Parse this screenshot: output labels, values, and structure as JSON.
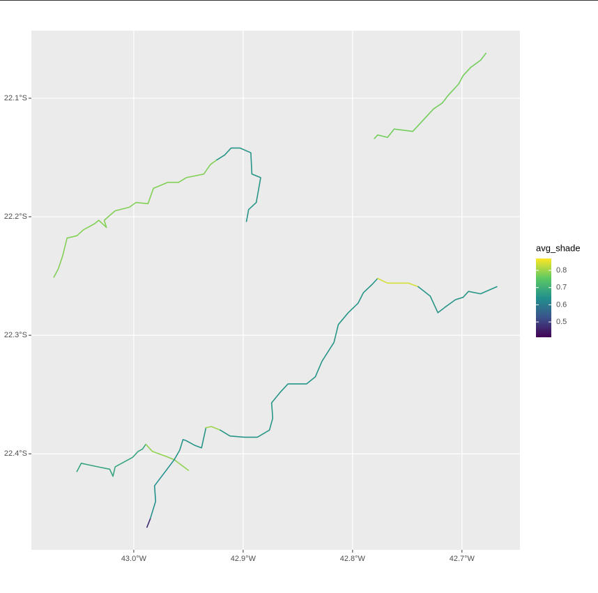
{
  "chart_data": {
    "type": "geo_lines",
    "xlim": [
      -43.0936,
      -42.647
    ],
    "ylim": [
      -22.481,
      -22.043
    ],
    "xticks": [
      {
        "value": -43.0,
        "label": "43.0°W"
      },
      {
        "value": -42.9,
        "label": "42.9°W"
      },
      {
        "value": -42.8,
        "label": "42.8°W"
      },
      {
        "value": -42.7,
        "label": "42.7°W"
      }
    ],
    "yticks": [
      {
        "value": -22.1,
        "label": "22.1°S"
      },
      {
        "value": -22.2,
        "label": "22.2°S"
      },
      {
        "value": -22.3,
        "label": "22.3°S"
      },
      {
        "value": -22.4,
        "label": "22.4°S"
      }
    ],
    "grid": true,
    "legend": {
      "title": "avg_shade",
      "limits": [
        0.411,
        0.869
      ],
      "ticks": [
        0.5,
        0.6,
        0.7,
        0.8
      ],
      "position": "right"
    },
    "series": [
      {
        "avg_shade": 0.77,
        "lon": [
          -42.78,
          -42.777,
          -42.768,
          -42.762,
          -42.745,
          -42.738,
          -42.726,
          -42.718,
          -42.713,
          -42.703,
          -42.699,
          -42.692,
          -42.683,
          -42.678
        ],
        "lat": [
          -22.134,
          -22.131,
          -22.133,
          -22.126,
          -22.128,
          -22.121,
          -22.109,
          -22.104,
          -22.098,
          -22.088,
          -22.081,
          -22.074,
          -22.068,
          -22.062
        ]
      },
      {
        "avg_shade": 0.78,
        "lon": [
          -43.073,
          -43.069,
          -43.065,
          -43.061,
          -43.052,
          -43.046,
          -43.036,
          -43.032,
          -43.025,
          -43.027,
          -43.017,
          -43.004,
          -42.998,
          -42.987,
          -42.982,
          -42.969,
          -42.959,
          -42.952,
          -42.936,
          -42.93,
          -42.924
        ],
        "lat": [
          -22.251,
          -22.244,
          -22.233,
          -22.218,
          -22.216,
          -22.211,
          -22.206,
          -22.203,
          -22.209,
          -22.203,
          -22.195,
          -22.192,
          -22.188,
          -22.189,
          -22.176,
          -22.171,
          -22.171,
          -22.167,
          -22.164,
          -22.156,
          -22.152
        ]
      },
      {
        "avg_shade": 0.65,
        "lon": [
          -42.924,
          -42.917,
          -42.911,
          -42.903,
          -42.893,
          -42.892,
          -42.884,
          -42.888,
          -42.895,
          -42.897
        ],
        "lat": [
          -22.152,
          -22.148,
          -22.142,
          -22.142,
          -22.146,
          -22.164,
          -22.167,
          -22.188,
          -22.194,
          -22.204
        ]
      },
      {
        "avg_shade": 0.68,
        "lon": [
          -43.052,
          -43.048,
          -43.033,
          -43.022,
          -43.019,
          -43.017,
          -43.001,
          -42.996,
          -42.992,
          -42.989
        ],
        "lat": [
          -22.415,
          -22.408,
          -22.411,
          -22.413,
          -22.419,
          -22.411,
          -22.403,
          -22.398,
          -22.396,
          -22.392
        ]
      },
      {
        "avg_shade": 0.79,
        "lon": [
          -42.989,
          -42.983,
          -42.977,
          -42.971,
          -42.963,
          -42.95
        ],
        "lat": [
          -22.392,
          -22.398,
          -22.4,
          -22.402,
          -22.405,
          -22.414
        ]
      },
      {
        "avg_shade": 0.65,
        "lon": [
          -42.963,
          -42.958,
          -42.955,
          -42.952,
          -42.944,
          -42.938,
          -42.934
        ],
        "lat": [
          -22.405,
          -22.397,
          -22.388,
          -22.389,
          -22.393,
          -22.395,
          -22.378
        ]
      },
      {
        "avg_shade": 0.8,
        "lon": [
          -42.934,
          -42.929,
          -42.921
        ],
        "lat": [
          -22.378,
          -22.377,
          -22.38
        ]
      },
      {
        "avg_shade": 0.65,
        "lon": [
          -42.921,
          -42.912,
          -42.899,
          -42.887,
          -42.876,
          -42.873,
          -42.874,
          -42.866,
          -42.859,
          -42.842,
          -42.834,
          -42.828,
          -42.817,
          -42.813,
          -42.804,
          -42.795,
          -42.79,
          -42.782,
          -42.777
        ],
        "lat": [
          -22.38,
          -22.385,
          -22.386,
          -22.386,
          -22.38,
          -22.37,
          -22.357,
          -22.348,
          -22.341,
          -22.341,
          -22.335,
          -22.322,
          -22.306,
          -22.291,
          -22.281,
          -22.273,
          -22.264,
          -22.257,
          -22.252
        ]
      },
      {
        "avg_shade": 0.84,
        "lon": [
          -42.777,
          -42.768,
          -42.759,
          -42.749,
          -42.74
        ],
        "lat": [
          -22.252,
          -22.256,
          -22.256,
          -22.256,
          -22.259
        ]
      },
      {
        "avg_shade": 0.65,
        "lon": [
          -42.74,
          -42.729,
          -42.722,
          -42.715,
          -42.706,
          -42.699,
          -42.694,
          -42.683,
          -42.668
        ],
        "lat": [
          -22.259,
          -22.267,
          -22.281,
          -22.276,
          -22.27,
          -22.268,
          -22.263,
          -22.265,
          -22.259
        ]
      },
      {
        "avg_shade": 0.64,
        "lon": [
          -42.963,
          -42.981,
          -42.98,
          -42.985
        ],
        "lat": [
          -22.405,
          -22.427,
          -22.44,
          -22.455
        ]
      },
      {
        "avg_shade": 0.47,
        "lon": [
          -42.985,
          -42.988
        ],
        "lat": [
          -22.455,
          -22.462
        ]
      }
    ]
  }
}
